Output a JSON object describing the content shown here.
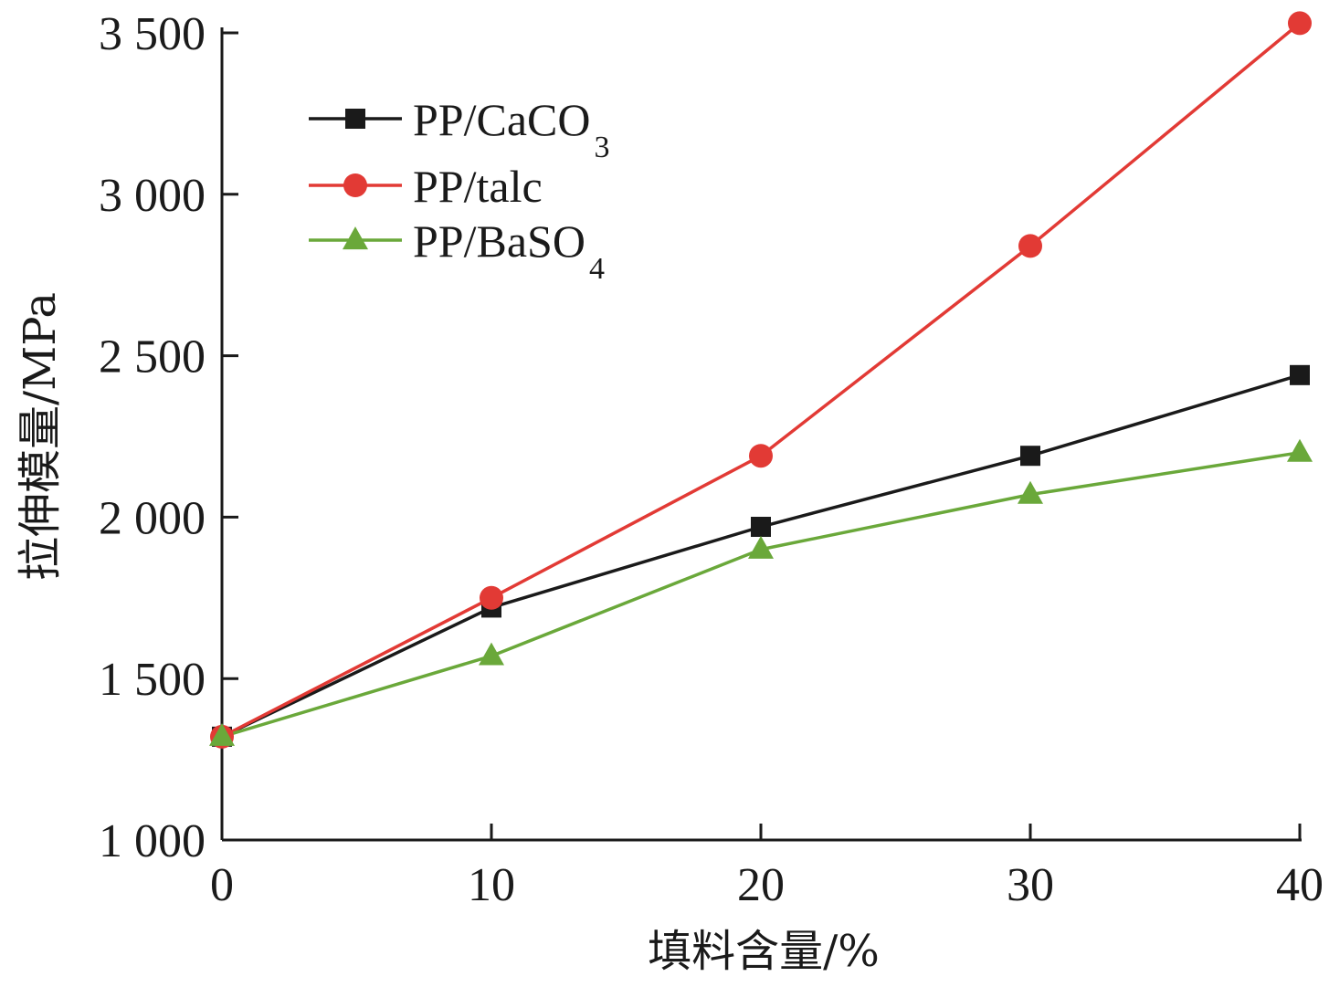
{
  "chart_data": {
    "type": "line",
    "title": "",
    "xlabel": "填料含量/%",
    "ylabel": "拉伸模量/MPa",
    "x": [
      0,
      10,
      20,
      30,
      40
    ],
    "x_ticks": [
      "0",
      "10",
      "20",
      "30",
      "40"
    ],
    "xlim": [
      0,
      40
    ],
    "ylim": [
      1000,
      3500
    ],
    "y_ticks": [
      {
        "value": 1000,
        "label": "1 000"
      },
      {
        "value": 1500,
        "label": "1 500"
      },
      {
        "value": 2000,
        "label": "2 000"
      },
      {
        "value": 2500,
        "label": "2 500"
      },
      {
        "value": 3000,
        "label": "3 000"
      },
      {
        "value": 3500,
        "label": "3 500"
      }
    ],
    "grid": false,
    "legend_position": "top-left",
    "series": [
      {
        "name": "PP/CaCO",
        "name_sub": "3",
        "marker": "square",
        "color": "#1a1a1a",
        "values": [
          1320,
          1720,
          1970,
          2190,
          2440
        ]
      },
      {
        "name": "PP/talc",
        "name_sub": "",
        "marker": "circle",
        "color": "#e23a35",
        "values": [
          1320,
          1750,
          2190,
          2840,
          3530
        ]
      },
      {
        "name": "PP/BaSO",
        "name_sub": "4",
        "marker": "triangle",
        "color": "#6aa83a",
        "values": [
          1320,
          1570,
          1900,
          2070,
          2200
        ]
      }
    ]
  }
}
